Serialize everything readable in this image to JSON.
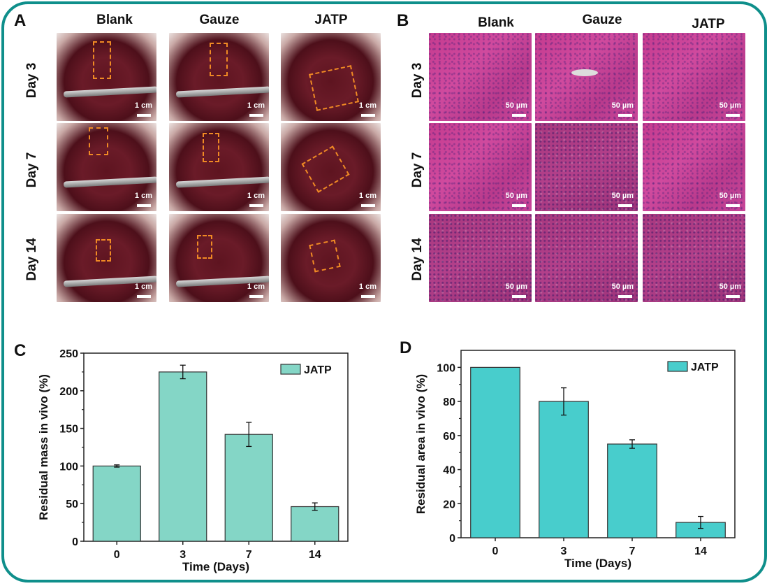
{
  "panels": {
    "A": {
      "letter": "A",
      "columns": [
        "Blank",
        "Gauze",
        "JATP"
      ],
      "rows": [
        "Day 3",
        "Day 7",
        "Day 14"
      ],
      "scale_bar": "1 cm"
    },
    "B": {
      "letter": "B",
      "columns": [
        "Blank",
        "Gauze",
        "JATP"
      ],
      "rows": [
        "Day 3",
        "Day 7",
        "Day 14"
      ],
      "scale_bar": "50 µm"
    },
    "C": {
      "letter": "C"
    },
    "D": {
      "letter": "D"
    }
  },
  "colors": {
    "frame": "#0f8f8b",
    "bar_c": "#84d6c6",
    "bar_d": "#48cdcc",
    "dashed_box": "#f08a24"
  },
  "chart_data": [
    {
      "id": "C",
      "type": "bar",
      "title": "",
      "xlabel": "Time (Days)",
      "ylabel": "Residual mass in vivo (%)",
      "categories": [
        "0",
        "3",
        "7",
        "14"
      ],
      "series": [
        {
          "name": "JATP",
          "values": [
            100,
            225,
            142,
            46
          ],
          "errors": [
            1.5,
            9,
            16,
            5
          ]
        }
      ],
      "ylim": [
        0,
        250
      ],
      "yticks": [
        0,
        50,
        100,
        150,
        200,
        250
      ],
      "grid": false,
      "legend": "top-right"
    },
    {
      "id": "D",
      "type": "bar",
      "title": "",
      "xlabel": "Time (Days)",
      "ylabel": "Residual area in vivo (%)",
      "categories": [
        "0",
        "3",
        "7",
        "14"
      ],
      "series": [
        {
          "name": "JATP",
          "values": [
            100,
            80,
            55,
            9
          ],
          "errors": [
            0,
            8,
            2.5,
            3.5
          ]
        }
      ],
      "ylim": [
        0,
        110
      ],
      "yticks": [
        0,
        20,
        40,
        60,
        80,
        100
      ],
      "grid": false,
      "legend": "top-right"
    }
  ]
}
